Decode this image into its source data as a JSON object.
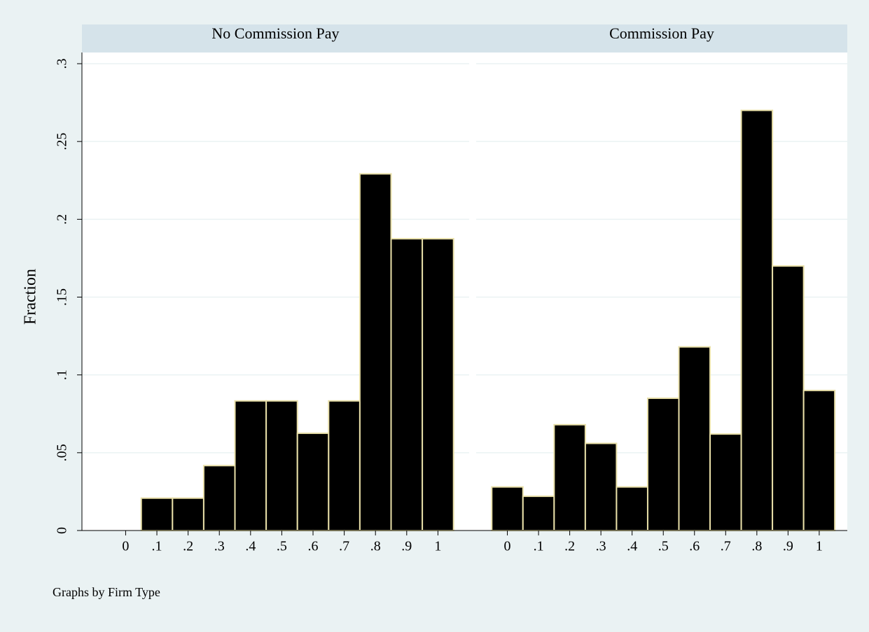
{
  "note": "Graphs by Firm Type",
  "chart_data": [
    {
      "type": "histogram",
      "title": "No Commission Pay",
      "ylabel": "Fraction",
      "bins": [
        -0.05,
        0.05,
        0.15,
        0.25,
        0.35,
        0.45,
        0.55,
        0.65,
        0.75,
        0.85,
        0.95,
        1.05
      ],
      "values": [
        0,
        0.0208,
        0.0208,
        0.0417,
        0.0833,
        0.0833,
        0.0625,
        0.0833,
        0.2292,
        0.1875,
        0.1875
      ],
      "color": "#000000",
      "edgecolor": "#e8dfa8",
      "xlim": [
        -0.14,
        1.1
      ],
      "xticks": [
        0,
        {
          "value": 0.1,
          "label": ".1"
        },
        {
          "value": 0.2,
          "label": ".2"
        },
        {
          "value": 0.3,
          "label": ".3"
        },
        {
          "value": 0.4,
          "label": ".4"
        },
        {
          "value": 0.5,
          "label": ".5"
        },
        {
          "value": 0.6,
          "label": ".6"
        },
        {
          "value": 0.7,
          "label": ".7"
        },
        {
          "value": 0.8,
          "label": ".8"
        },
        {
          "value": 0.9,
          "label": ".9"
        },
        1
      ],
      "ylim": [
        0,
        0.3
      ],
      "yticks": [
        0,
        {
          "value": 0.05,
          "label": ".05"
        },
        {
          "value": 0.1,
          "label": ".1"
        },
        {
          "value": 0.15,
          "label": ".15"
        },
        {
          "value": 0.2,
          "label": ".2"
        },
        {
          "value": 0.25,
          "label": ".25"
        },
        {
          "value": 0.3,
          "label": ".3"
        }
      ],
      "grid": true
    },
    {
      "type": "histogram",
      "title": "Commission Pay",
      "bins": [
        -0.05,
        0.05,
        0.15,
        0.25,
        0.35,
        0.45,
        0.55,
        0.65,
        0.75,
        0.85,
        0.95,
        1.05
      ],
      "values": [
        0.028,
        0.022,
        0.068,
        0.056,
        0.028,
        0.085,
        0.118,
        0.062,
        0.27,
        0.17,
        0.09
      ],
      "color": "#000000",
      "edgecolor": "#e8dfa8",
      "xlim": [
        -0.1,
        1.09
      ],
      "xticks": [
        0,
        {
          "value": 0.1,
          "label": ".1"
        },
        {
          "value": 0.2,
          "label": ".2"
        },
        {
          "value": 0.3,
          "label": ".3"
        },
        {
          "value": 0.4,
          "label": ".4"
        },
        {
          "value": 0.5,
          "label": ".5"
        },
        {
          "value": 0.6,
          "label": ".6"
        },
        {
          "value": 0.7,
          "label": ".7"
        },
        {
          "value": 0.8,
          "label": ".8"
        },
        {
          "value": 0.9,
          "label": ".9"
        },
        1
      ],
      "ylim": [
        0,
        0.3
      ],
      "grid": true
    }
  ]
}
